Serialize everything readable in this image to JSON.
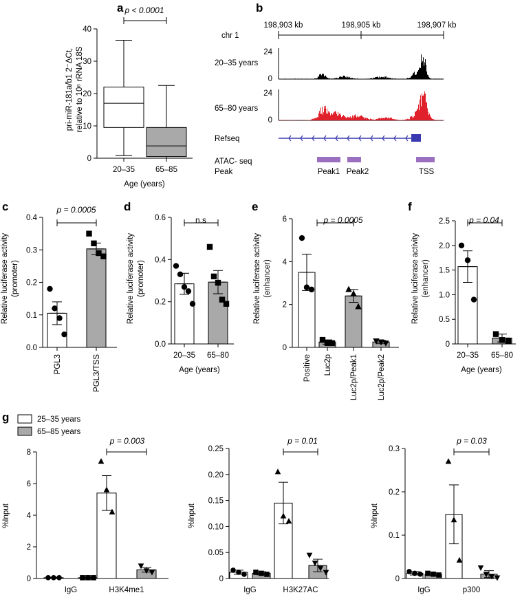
{
  "colors": {
    "white_fill": "#ffffff",
    "grey_fill": "#a9a9a9",
    "signal_young": "#000000",
    "signal_old": "#e0202a",
    "refseq": "#3a3ab0",
    "peak": "#9b6fc0"
  },
  "panel_a": {
    "letter": "a",
    "ylabel_line1": "pri-miR-181a/b1 2⁻ΔCt,",
    "ylabel_line2": "relative to 10⁶ rRNA 18S",
    "xlabel": "Age (years)",
    "pvalue": "p < 0.0001",
    "chart_data": {
      "type": "box",
      "categories": [
        "20–35",
        "65–85"
      ],
      "boxes": [
        {
          "min": 0.8,
          "q1": 9.5,
          "median": 17,
          "q3": 22,
          "max": 36.5
        },
        {
          "min": 0,
          "q1": 0.5,
          "median": 3.8,
          "q3": 9.5,
          "max": 22.5
        }
      ],
      "ylim": [
        0,
        40
      ],
      "yticks": [
        "0",
        "10",
        "20",
        "30",
        "40"
      ]
    }
  },
  "panel_b": {
    "letter": "b",
    "chrom": "chr 1",
    "coords": [
      "198,903 kb",
      "198,905 kb",
      "198,907 kb"
    ],
    "tracks": [
      {
        "label": "20–35 years",
        "ymax": "24",
        "ymin": "0"
      },
      {
        "label": "65–80 years",
        "ymax": "24",
        "ymin": "0"
      }
    ],
    "refseq_label": "Refseq",
    "atac_label_line1": "ATAC- seq",
    "atac_label_line2": "Peak",
    "peaks": [
      "Peak1",
      "Peak2",
      "TSS"
    ]
  },
  "panel_c": {
    "letter": "c",
    "ylabel_line1": "Relative luciferase activity",
    "ylabel_line2": "(promoter)",
    "pvalue": "p = 0.0005",
    "chart_data": {
      "type": "bar",
      "categories": [
        "PGL3",
        "PGL3/TSS"
      ],
      "values": [
        0.105,
        0.303
      ],
      "errors": [
        0.035,
        0.018
      ],
      "points": [
        [
          0.18,
          0.12,
          0.09,
          0.04
        ],
        [
          0.35,
          0.32,
          0.29,
          0.28
        ]
      ],
      "ylim": [
        0,
        0.4
      ],
      "yticks": [
        "0.0",
        "0.1",
        "0.2",
        "0.3",
        "0.4"
      ]
    }
  },
  "panel_d": {
    "letter": "d",
    "ylabel_line1": "Relative luciferase activity",
    "ylabel_line2": "(promoter)",
    "xlabel": "Age (years)",
    "pvalue": "n.s",
    "chart_data": {
      "type": "bar",
      "categories": [
        "20–35",
        "65–80"
      ],
      "values": [
        0.285,
        0.293
      ],
      "errors": [
        0.05,
        0.055
      ],
      "points": [
        [
          0.37,
          0.33,
          0.27,
          0.25,
          0.19
        ],
        [
          0.46,
          0.32,
          0.29,
          0.21,
          0.19
        ]
      ],
      "ylim": [
        0,
        0.6
      ],
      "yticks": [
        "0.0",
        "0.2",
        "0.4",
        "0.6"
      ]
    }
  },
  "panel_e": {
    "letter": "e",
    "ylabel_line1": "Relative luciferase activity",
    "ylabel_line2": "(enhancer)",
    "pvalue": "p = 0.0005",
    "chart_data": {
      "type": "bar",
      "categories": [
        "Positive",
        "Luc2p",
        "Luc2p/Peak1",
        "Luc2p/Peak2"
      ],
      "values": [
        3.5,
        0.25,
        2.4,
        0.25
      ],
      "errors": [
        0.85,
        0.1,
        0.3,
        0.08
      ],
      "points": [
        [
          5.1,
          2.8,
          2.7
        ],
        [
          0.35,
          0.2,
          0.2
        ],
        [
          2.7,
          2.5,
          1.9
        ],
        [
          0.3,
          0.25,
          0.2
        ]
      ],
      "ylim": [
        0,
        6
      ],
      "yticks": [
        "0",
        "2",
        "4",
        "6"
      ]
    }
  },
  "panel_f": {
    "letter": "f",
    "ylabel_line1": "Relative luciferase activity",
    "ylabel_line2": "(enhancer)",
    "xlabel": "Age (years)",
    "pvalue": "p = 0.04",
    "chart_data": {
      "type": "bar",
      "categories": [
        "20–35",
        "65–80"
      ],
      "values": [
        1.57,
        0.12
      ],
      "errors": [
        0.32,
        0.08
      ],
      "points": [
        [
          2.0,
          1.7,
          0.9
        ],
        [
          0.2,
          0.08,
          0.06
        ]
      ],
      "ylim": [
        0,
        2.5
      ],
      "yticks": [
        "0",
        "0.5",
        "1.0",
        "1.5",
        "2.0",
        "2.5"
      ]
    }
  },
  "panel_g": {
    "letter": "g",
    "legend": [
      "25–35 years",
      "65–85 years"
    ],
    "ylabel": "%Input",
    "subcharts": [
      {
        "pvalue": "p = 0.003",
        "chart_data": {
          "type": "bar",
          "categories": [
            "IgG",
            "H3K4me1"
          ],
          "values": [
            [
              0.05,
              0.05
            ],
            [
              5.4,
              0.55
            ]
          ],
          "errors": [
            [
              0.02,
              0.02
            ],
            [
              1.1,
              0.15
            ]
          ],
          "points": [
            [
              [
                0.05,
                0.05,
                0.05
              ],
              [
                0.05,
                0.05,
                0.05
              ]
            ],
            [
              [
                7.4,
                5.6,
                4.2
              ],
              [
                0.8,
                0.5,
                0.4
              ]
            ]
          ],
          "ylim": [
            0,
            8
          ],
          "yticks": [
            "0",
            "2",
            "4",
            "6",
            "8"
          ]
        }
      },
      {
        "pvalue": "p = 0.01",
        "chart_data": {
          "type": "bar",
          "categories": [
            "IgG",
            "H3K27AC"
          ],
          "values": [
            [
              0.012,
              0.01
            ],
            [
              0.145,
              0.025
            ]
          ],
          "errors": [
            [
              0.004,
              0.003
            ],
            [
              0.04,
              0.012
            ]
          ],
          "points": [
            [
              [
                0.016,
                0.012,
                0.008
              ],
              [
                0.012,
                0.01,
                0.008
              ]
            ],
            [
              [
                0.205,
                0.12,
                0.11
              ],
              [
                0.045,
                0.03,
                0.02,
                0.012
              ]
            ]
          ],
          "ylim": [
            0,
            0.25
          ],
          "yticks": [
            "0",
            "0.05",
            "0.10",
            "0.15",
            "0.20",
            "0.25"
          ]
        }
      },
      {
        "pvalue": "p = 0.03",
        "chart_data": {
          "type": "bar",
          "categories": [
            "IgG",
            "p300"
          ],
          "values": [
            [
              0.012,
              0.01
            ],
            [
              0.148,
              0.01
            ]
          ],
          "errors": [
            [
              0.004,
              0.003
            ],
            [
              0.068,
              0.008
            ]
          ],
          "points": [
            [
              [
                0.016,
                0.012,
                0.01
              ],
              [
                0.012,
                0.01,
                0.008
              ]
            ],
            [
              [
                0.27,
                0.135,
                0.042
              ],
              [
                0.025,
                0.01,
                0.005,
                0.002
              ]
            ]
          ],
          "ylim": [
            0,
            0.3
          ],
          "yticks": [
            "0",
            "0.1",
            "0.2",
            "0.3"
          ]
        }
      }
    ]
  }
}
